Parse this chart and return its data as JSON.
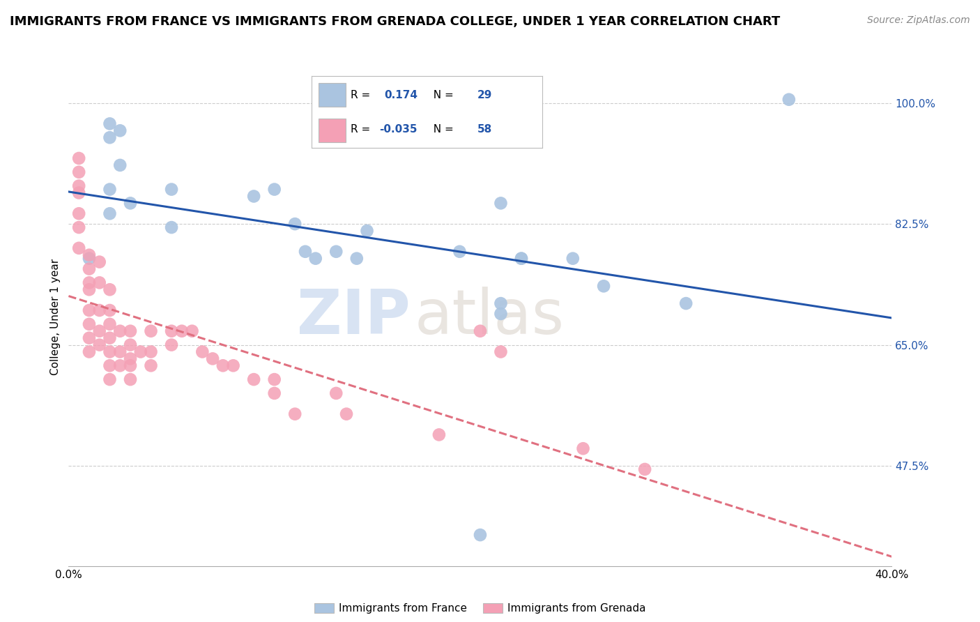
{
  "title": "IMMIGRANTS FROM FRANCE VS IMMIGRANTS FROM GRENADA COLLEGE, UNDER 1 YEAR CORRELATION CHART",
  "source": "Source: ZipAtlas.com",
  "ylabel": "College, Under 1 year",
  "legend_label1": "Immigrants from France",
  "legend_label2": "Immigrants from Grenada",
  "R1": 0.174,
  "N1": 29,
  "R2": -0.035,
  "N2": 58,
  "xmin": 0.0,
  "xmax": 0.4,
  "ymin": 0.33,
  "ymax": 1.05,
  "yticks_right": [
    1.0,
    0.825,
    0.65,
    0.475
  ],
  "ytick_labels_right": [
    "100.0%",
    "82.5%",
    "65.0%",
    "47.5%"
  ],
  "xticks": [
    0.0,
    0.05,
    0.1,
    0.15,
    0.2,
    0.25,
    0.3,
    0.35,
    0.4
  ],
  "xtick_labels": [
    "0.0%",
    "",
    "",
    "",
    "",
    "",
    "",
    "",
    "40.0%"
  ],
  "color_france": "#aac4e0",
  "color_grenada": "#f4a0b5",
  "line_color_france": "#2255aa",
  "line_color_grenada": "#e07080",
  "title_fontsize": 13,
  "axis_label_fontsize": 11,
  "tick_fontsize": 11,
  "france_x": [
    0.01,
    0.02,
    0.02,
    0.025,
    0.025,
    0.02,
    0.02,
    0.03,
    0.05,
    0.05,
    0.09,
    0.1,
    0.11,
    0.115,
    0.12,
    0.13,
    0.14,
    0.145,
    0.19,
    0.2,
    0.21,
    0.22,
    0.245,
    0.26,
    0.21,
    0.21,
    0.3,
    0.22,
    0.35
  ],
  "france_y": [
    0.775,
    0.84,
    0.875,
    0.91,
    0.96,
    0.95,
    0.97,
    0.855,
    0.875,
    0.82,
    0.865,
    0.875,
    0.825,
    0.785,
    0.775,
    0.785,
    0.775,
    0.815,
    0.785,
    0.375,
    0.855,
    0.775,
    0.775,
    0.735,
    0.71,
    0.695,
    0.71,
    0.775,
    1.005
  ],
  "grenada_x": [
    0.005,
    0.005,
    0.005,
    0.005,
    0.005,
    0.005,
    0.005,
    0.01,
    0.01,
    0.01,
    0.01,
    0.01,
    0.01,
    0.01,
    0.01,
    0.015,
    0.015,
    0.015,
    0.015,
    0.015,
    0.02,
    0.02,
    0.02,
    0.02,
    0.02,
    0.02,
    0.02,
    0.025,
    0.025,
    0.025,
    0.03,
    0.03,
    0.03,
    0.03,
    0.03,
    0.035,
    0.04,
    0.04,
    0.04,
    0.05,
    0.05,
    0.055,
    0.06,
    0.065,
    0.07,
    0.075,
    0.08,
    0.09,
    0.1,
    0.1,
    0.11,
    0.13,
    0.135,
    0.18,
    0.2,
    0.21,
    0.25,
    0.28
  ],
  "grenada_y": [
    0.92,
    0.9,
    0.88,
    0.87,
    0.84,
    0.82,
    0.79,
    0.78,
    0.76,
    0.74,
    0.73,
    0.7,
    0.68,
    0.66,
    0.64,
    0.77,
    0.74,
    0.7,
    0.67,
    0.65,
    0.73,
    0.7,
    0.68,
    0.66,
    0.64,
    0.62,
    0.6,
    0.67,
    0.64,
    0.62,
    0.67,
    0.65,
    0.63,
    0.62,
    0.6,
    0.64,
    0.67,
    0.64,
    0.62,
    0.67,
    0.65,
    0.67,
    0.67,
    0.64,
    0.63,
    0.62,
    0.62,
    0.6,
    0.6,
    0.58,
    0.55,
    0.58,
    0.55,
    0.52,
    0.67,
    0.64,
    0.5,
    0.47
  ],
  "watermark_zip": "ZIP",
  "watermark_atlas": "atlas",
  "background_color": "#ffffff",
  "grid_color": "#cccccc"
}
